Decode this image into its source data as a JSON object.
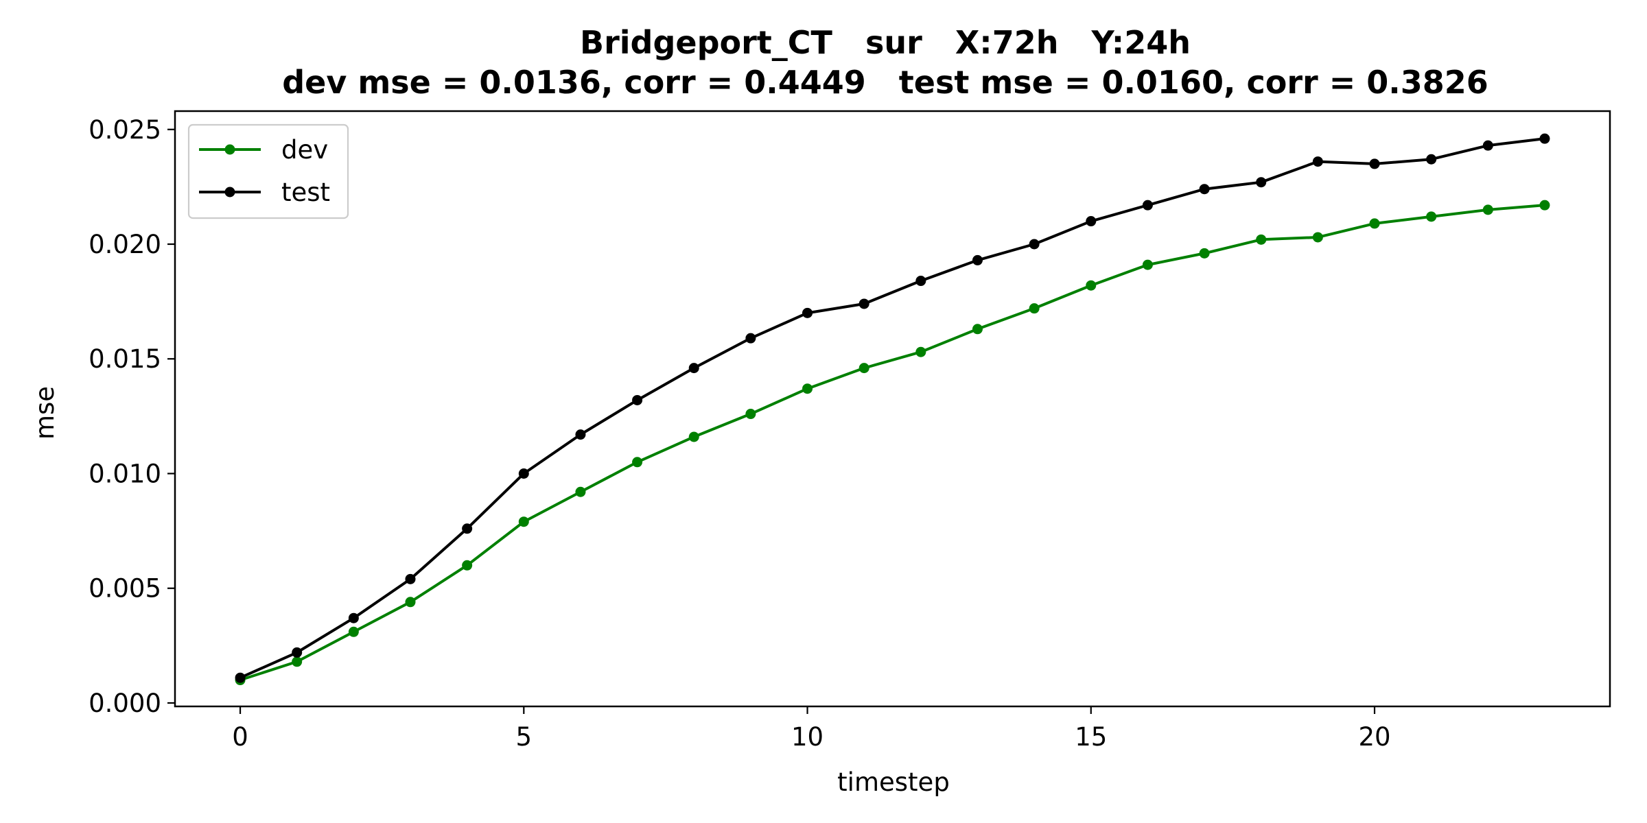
{
  "chart_data": {
    "type": "line",
    "title_line1": "Bridgeport_CT   sur   X:72h   Y:24h",
    "title_line2": "dev mse = 0.0136, corr = 0.4449   test mse = 0.0160, corr = 0.3826",
    "xlabel": "timestep",
    "ylabel": "mse",
    "xlim": [
      -1.15,
      24.15
    ],
    "ylim": [
      -0.00015,
      0.0258
    ],
    "x_ticks": [
      0,
      5,
      10,
      15,
      20
    ],
    "x_tick_labels": [
      "0",
      "5",
      "10",
      "15",
      "20"
    ],
    "y_ticks": [
      0.0,
      0.005,
      0.01,
      0.015,
      0.02,
      0.025
    ],
    "y_tick_labels": [
      "0.000",
      "0.005",
      "0.010",
      "0.015",
      "0.020",
      "0.025"
    ],
    "grid": false,
    "legend_position": "top-left",
    "x": [
      0,
      1,
      2,
      3,
      4,
      5,
      6,
      7,
      8,
      9,
      10,
      11,
      12,
      13,
      14,
      15,
      16,
      17,
      18,
      19,
      20,
      21,
      22,
      23
    ],
    "series": [
      {
        "name": "dev",
        "color": "#008000",
        "values": [
          0.001,
          0.0018,
          0.0031,
          0.0044,
          0.006,
          0.0079,
          0.0092,
          0.0105,
          0.0116,
          0.0126,
          0.0137,
          0.0146,
          0.0153,
          0.0163,
          0.0172,
          0.0182,
          0.0191,
          0.0196,
          0.0202,
          0.0203,
          0.0209,
          0.0212,
          0.0215,
          0.0217
        ]
      },
      {
        "name": "test",
        "color": "#000000",
        "values": [
          0.0011,
          0.0022,
          0.0037,
          0.0054,
          0.0076,
          0.01,
          0.0117,
          0.0132,
          0.0146,
          0.0159,
          0.017,
          0.0174,
          0.0184,
          0.0193,
          0.02,
          0.021,
          0.0217,
          0.0224,
          0.0227,
          0.0236,
          0.0235,
          0.0237,
          0.0243,
          0.0246
        ]
      }
    ]
  }
}
